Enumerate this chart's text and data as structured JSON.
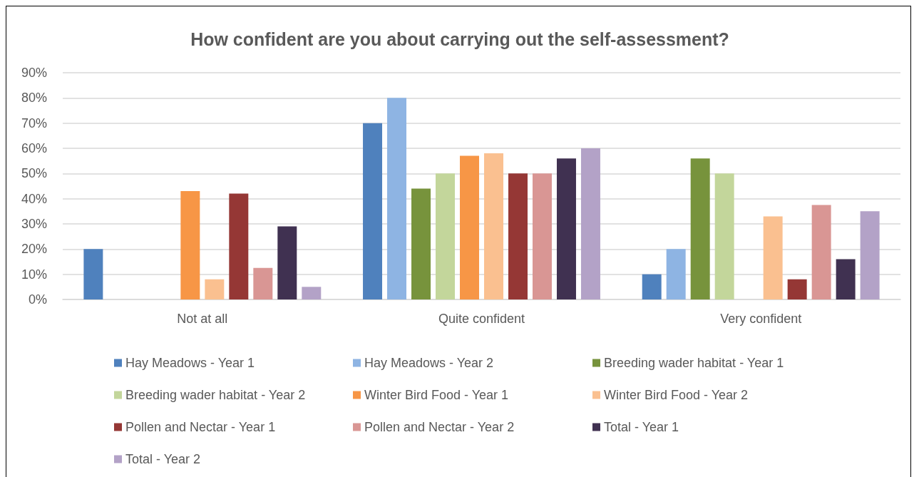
{
  "chart_data": {
    "type": "bar",
    "title": "How confident are you about carrying out the self-assessment?",
    "categories": [
      "Not at all",
      "Quite confident",
      "Very confident"
    ],
    "series": [
      {
        "name": "Hay Meadows - Year 1",
        "color": "#4f81bd",
        "values": [
          20,
          70,
          10
        ]
      },
      {
        "name": "Hay Meadows - Year 2",
        "color": "#8eb4e3",
        "values": [
          null,
          80,
          20
        ]
      },
      {
        "name": "Breeding wader habitat - Year 1",
        "color": "#77933c",
        "values": [
          null,
          44,
          56
        ]
      },
      {
        "name": "Breeding wader habitat - Year 2",
        "color": "#c3d69b",
        "values": [
          null,
          50,
          50
        ]
      },
      {
        "name": "Winter Bird Food - Year 1",
        "color": "#f79646",
        "values": [
          43,
          57,
          null
        ]
      },
      {
        "name": "Winter Bird Food - Year 2",
        "color": "#fac090",
        "values": [
          8,
          58,
          33
        ]
      },
      {
        "name": "Pollen and Nectar - Year 1",
        "color": "#953735",
        "values": [
          42,
          50,
          8
        ]
      },
      {
        "name": "Pollen and Nectar - Year 2",
        "color": "#d99694",
        "values": [
          12.5,
          50,
          37.5
        ]
      },
      {
        "name": "Total - Year 1",
        "color": "#403151",
        "values": [
          29,
          56,
          16
        ]
      },
      {
        "name": "Total - Year 2",
        "color": "#b3a2c7",
        "values": [
          5,
          60,
          35
        ]
      }
    ],
    "ylim": [
      0,
      90
    ],
    "yticks": [
      {
        "value": 0,
        "label": "0%"
      },
      {
        "value": 10,
        "label": "10%"
      },
      {
        "value": 20,
        "label": "20%"
      },
      {
        "value": 30,
        "label": "30%"
      },
      {
        "value": 40,
        "label": "40%"
      },
      {
        "value": 50,
        "label": "50%"
      },
      {
        "value": 60,
        "label": "60%"
      },
      {
        "value": 70,
        "label": "70%"
      },
      {
        "value": 80,
        "label": "80%"
      },
      {
        "value": 90,
        "label": "90%"
      }
    ],
    "grid": "y",
    "legend": "bottom"
  }
}
